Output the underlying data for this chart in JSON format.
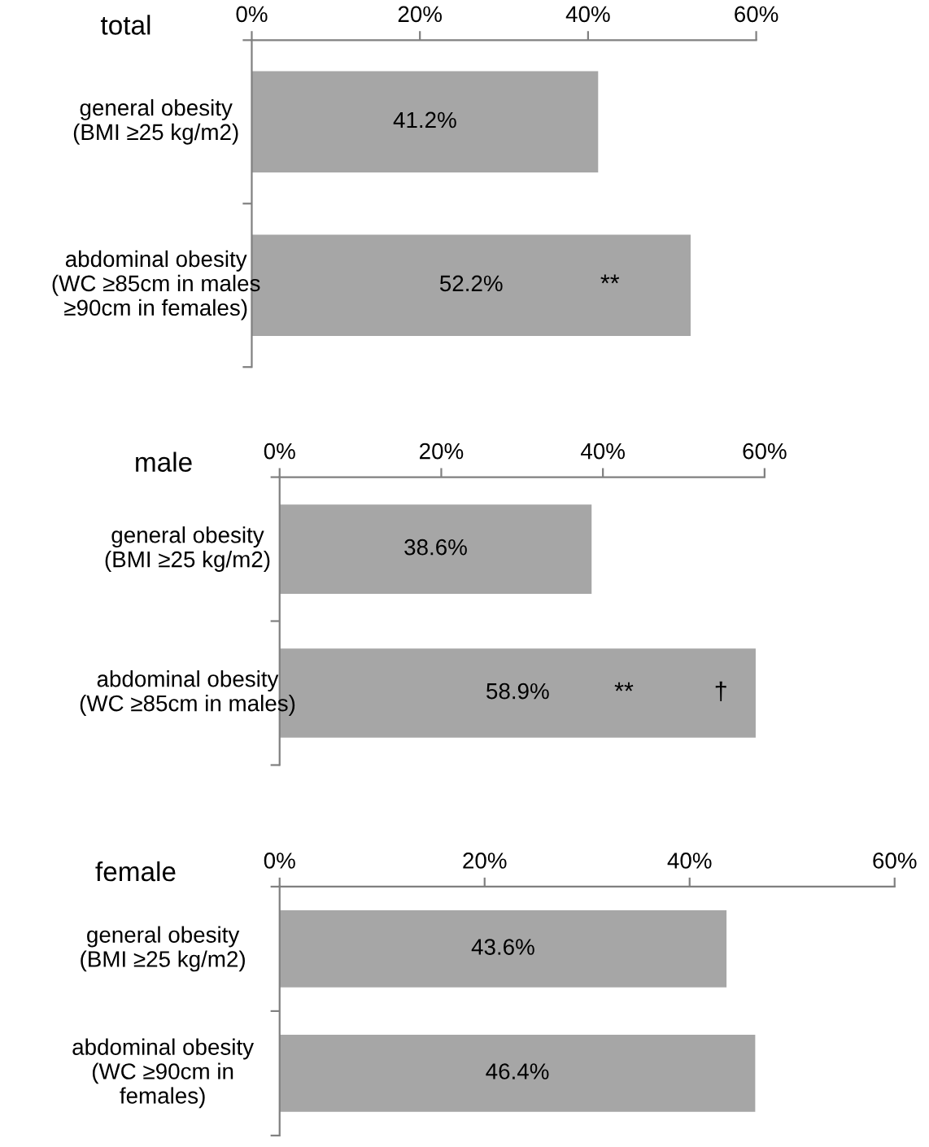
{
  "chart_data": [
    {
      "type": "bar",
      "orientation": "horizontal",
      "title": "total",
      "categories": [
        "general obesity\n(BMI ≥25 kg/m2)",
        "abdominal obesity\n(WC ≥85cm in males\n≥90cm in females)"
      ],
      "values": [
        41.2,
        52.2
      ],
      "value_labels": [
        "41.2%",
        "52.2%"
      ],
      "color": "#a6a6a6",
      "xlim": [
        0,
        60
      ],
      "xticks": [
        {
          "value": 0,
          "label": "0%"
        },
        {
          "value": 20,
          "label": "20%"
        },
        {
          "value": 40,
          "label": "40%"
        },
        {
          "value": 60,
          "label": "60%"
        }
      ],
      "grid": false,
      "legend": false,
      "annotations": [
        "**"
      ]
    },
    {
      "type": "bar",
      "orientation": "horizontal",
      "title": "male",
      "categories": [
        "general obesity\n(BMI ≥25 kg/m2)",
        "abdominal obesity\n(WC ≥85cm in males)"
      ],
      "values": [
        38.6,
        58.9
      ],
      "value_labels": [
        "38.6%",
        "58.9%"
      ],
      "color": "#a6a6a6",
      "xlim": [
        0,
        60
      ],
      "xticks": [
        {
          "value": 0,
          "label": "0%"
        },
        {
          "value": 20,
          "label": "20%"
        },
        {
          "value": 40,
          "label": "40%"
        },
        {
          "value": 60,
          "label": "60%"
        }
      ],
      "grid": false,
      "legend": false,
      "annotations": [
        "**",
        "†"
      ]
    },
    {
      "type": "bar",
      "orientation": "horizontal",
      "title": "female",
      "categories": [
        "general obesity\n(BMI ≥25 kg/m2)",
        "abdominal obesity\n(WC ≥90cm in\nfemales)"
      ],
      "values": [
        43.6,
        46.4
      ],
      "value_labels": [
        "43.6%",
        "46.4%"
      ],
      "color": "#a6a6a6",
      "xlim": [
        0,
        60
      ],
      "xticks": [
        {
          "value": 0,
          "label": "0%"
        },
        {
          "value": 20,
          "label": "20%"
        },
        {
          "value": 40,
          "label": "40%"
        },
        {
          "value": 60,
          "label": "60%"
        }
      ],
      "grid": false,
      "legend": false
    }
  ]
}
